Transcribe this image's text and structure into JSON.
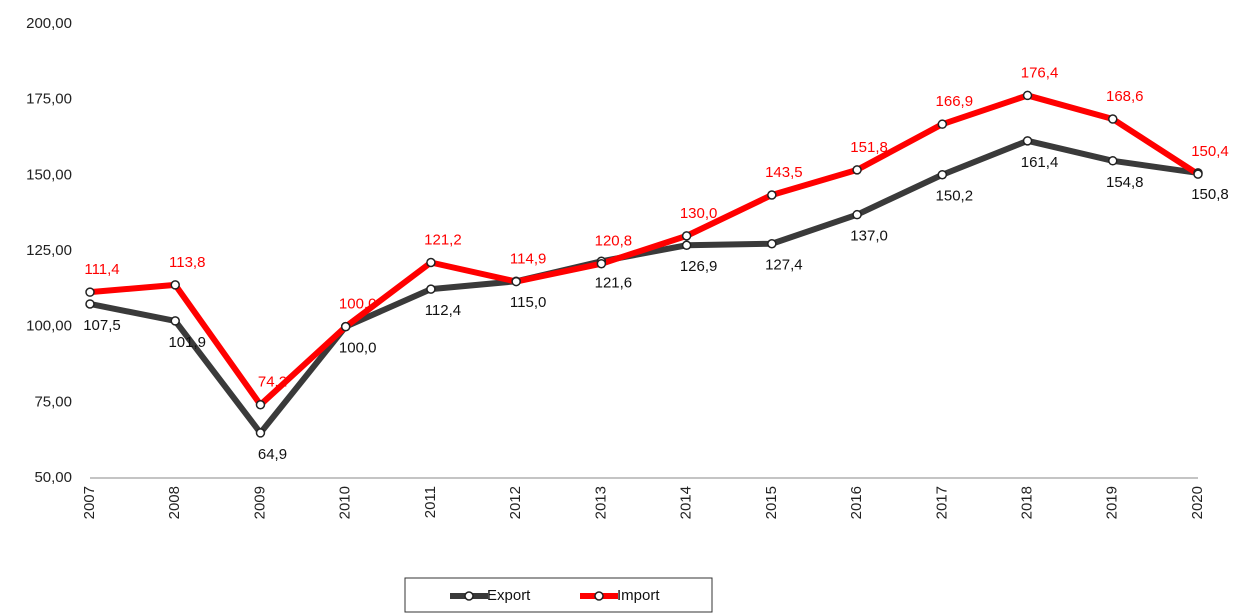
{
  "chart_data": {
    "type": "line",
    "categories": [
      "2007",
      "2008",
      "2009",
      "2010",
      "2011",
      "2012",
      "2013",
      "2014",
      "2015",
      "2016",
      "2017",
      "2018",
      "2019",
      "2020"
    ],
    "series": [
      {
        "name": "Export",
        "color": "#3a3a3a",
        "values": [
          107.5,
          101.9,
          64.9,
          100.0,
          112.4,
          115.0,
          121.6,
          126.9,
          127.4,
          137.0,
          150.2,
          161.4,
          154.8,
          150.8
        ],
        "value_labels": [
          "107,5",
          "101,9",
          "64,9",
          "100,0",
          "112,4",
          "115,0",
          "121,6",
          "126,9",
          "127,4",
          "137,0",
          "150,2",
          "161,4",
          "154,8",
          "150,8"
        ]
      },
      {
        "name": "Import",
        "color": "#ff0000",
        "values": [
          111.4,
          113.8,
          74.2,
          100.0,
          121.2,
          114.9,
          120.8,
          130.0,
          143.5,
          151.8,
          166.9,
          176.4,
          168.6,
          150.4
        ],
        "value_labels": [
          "111,4",
          "113,8",
          "74,2",
          "100,0",
          "121,2",
          "114,9",
          "120,8",
          "130,0",
          "143,5",
          "151,8",
          "166,9",
          "176,4",
          "168,6",
          "150,4"
        ]
      }
    ],
    "ylim": [
      50,
      200
    ],
    "yticks": [
      {
        "value": 50,
        "label": "50,00"
      },
      {
        "value": 75,
        "label": "75,00"
      },
      {
        "value": 100,
        "label": "100,00"
      },
      {
        "value": 125,
        "label": "125,00"
      },
      {
        "value": 150,
        "label": "150,00"
      },
      {
        "value": 175,
        "label": "175,00"
      },
      {
        "value": 200,
        "label": "200,00"
      }
    ],
    "grid": false,
    "legend": "bottom"
  }
}
